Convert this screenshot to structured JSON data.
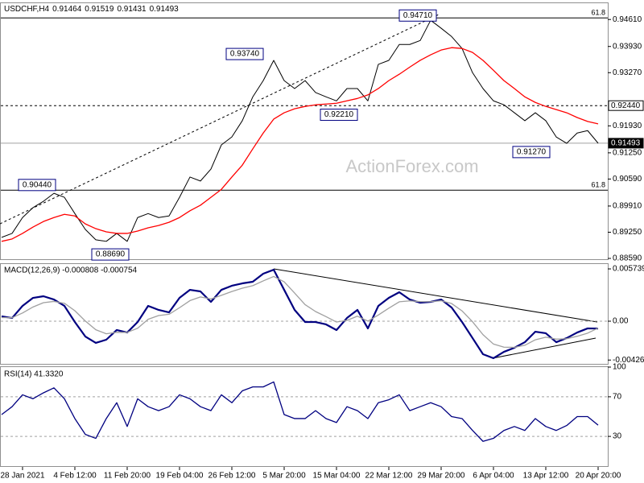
{
  "chart_data": [
    {
      "type": "line",
      "title": "USDCHF,H4",
      "ohlc": [
        "0.91464",
        "0.91519",
        "0.91431",
        "0.91493"
      ],
      "watermark": "ActionForex.com",
      "series": [
        {
          "color": "#000000",
          "values": [
            0.8912,
            0.8922,
            0.8962,
            0.8987,
            0.9003,
            0.9023,
            0.9013,
            0.8972,
            0.8932,
            0.8906,
            0.8902,
            0.8922,
            0.8902,
            0.8962,
            0.8972,
            0.8962,
            0.8966,
            0.9013,
            0.9064,
            0.9054,
            0.9084,
            0.9145,
            0.9165,
            0.9206,
            0.9266,
            0.9307,
            0.9358,
            0.9307,
            0.9287,
            0.9307,
            0.9277,
            0.9266,
            0.9256,
            0.9287,
            0.9287,
            0.9256,
            0.9348,
            0.9358,
            0.9398,
            0.9398,
            0.9408,
            0.9459,
            0.9439,
            0.9418,
            0.9388,
            0.9327,
            0.9287,
            0.9256,
            0.9246,
            0.9226,
            0.9206,
            0.9226,
            0.9206,
            0.9165,
            0.9149,
            0.9175,
            0.9181,
            0.91493
          ]
        },
        {
          "color": "#ff0000",
          "values": [
            0.8902,
            0.8908,
            0.8922,
            0.8938,
            0.8952,
            0.8962,
            0.897,
            0.8966,
            0.8946,
            0.8934,
            0.8926,
            0.8922,
            0.8922,
            0.8928,
            0.8936,
            0.8942,
            0.895,
            0.8962,
            0.8979,
            0.8993,
            0.9013,
            0.9033,
            0.9064,
            0.9094,
            0.9135,
            0.9175,
            0.921,
            0.9226,
            0.9236,
            0.9242,
            0.9246,
            0.9248,
            0.925,
            0.9256,
            0.9262,
            0.9271,
            0.9287,
            0.9307,
            0.9323,
            0.9341,
            0.9358,
            0.9372,
            0.9384,
            0.939,
            0.9388,
            0.9378,
            0.9358,
            0.9333,
            0.9307,
            0.9287,
            0.9266,
            0.9252,
            0.9242,
            0.9234,
            0.9226,
            0.9214,
            0.9204,
            0.9198
          ]
        }
      ],
      "ylim": [
        0.8857,
        0.9504
      ],
      "yticks": [
        {
          "value": 0.9461,
          "label": "0.94610"
        },
        {
          "value": 0.9393,
          "label": "0.93930"
        },
        {
          "value": 0.9327,
          "label": "0.93270"
        },
        {
          "value": 0.9193,
          "label": "0.91930"
        },
        {
          "value": 0.9125,
          "label": "0.91250"
        },
        {
          "value": 0.9059,
          "label": "0.90590"
        },
        {
          "value": 0.8991,
          "label": "0.89910"
        },
        {
          "value": 0.8925,
          "label": "0.89250"
        },
        {
          "value": 0.8859,
          "label": "0.88590"
        }
      ],
      "levels": [
        {
          "value": 0.9465,
          "label": "61.8"
        },
        {
          "value": 0.9031,
          "label": "61.8"
        }
      ],
      "axis_labels": [
        {
          "value": 0.9244,
          "label": "0.92440"
        },
        {
          "value": 0.91493,
          "label": "0.91493"
        }
      ],
      "annotations": [
        {
          "value": 0.9471,
          "label": "0.94710"
        },
        {
          "value": 0.9374,
          "label": "0.93740"
        },
        {
          "value": 0.9221,
          "label": "0.92210"
        },
        {
          "value": 0.9127,
          "label": "0.91270"
        },
        {
          "value": 0.9044,
          "label": "0.90440"
        },
        {
          "value": 0.8869,
          "label": "0.88690"
        }
      ]
    },
    {
      "type": "line",
      "title": "MACD(12,26,9) -0.000808 -0.000754",
      "series": [
        {
          "color": "#000080",
          "values": [
            0.00053,
            0.00035,
            0.00168,
            0.00256,
            0.00274,
            0.00238,
            0.00168,
            -9e-05,
            -0.00168,
            -0.00238,
            -0.00203,
            -0.00097,
            -0.00124,
            -9e-05,
            0.00168,
            0.00124,
            0.00097,
            0.00256,
            0.00344,
            0.00327,
            0.00212,
            0.00344,
            0.00389,
            0.00415,
            0.00433,
            0.00521,
            0.00565,
            0.00344,
            0.00124,
            -9e-05,
            -9e-05,
            -0.00035,
            -0.00097,
            0.00035,
            0.00124,
            -0.00079,
            0.00168,
            0.00256,
            0.00318,
            0.00238,
            0.00203,
            0.00212,
            0.00238,
            0.0015,
            -9e-05,
            -0.00185,
            -0.00362,
            -0.00406,
            -0.00336,
            -0.00291,
            -0.0023,
            -0.00115,
            -0.00132,
            -0.0023,
            -0.00185,
            -0.00124,
            -0.00079,
            -0.000808
          ]
        },
        {
          "color": "#a0a0a0",
          "values": [
            0.0004,
            0.00038,
            0.0009,
            0.00156,
            0.00203,
            0.00217,
            0.00197,
            0.00115,
            2e-05,
            -0.00094,
            -0.00138,
            -0.00122,
            -0.00123,
            -0.00077,
            0.00021,
            0.00062,
            0.00076,
            0.00148,
            0.00226,
            0.00266,
            0.00244,
            0.00284,
            0.00326,
            0.00362,
            0.0039,
            0.00442,
            0.00491,
            0.00432,
            0.00309,
            0.00182,
            0.00106,
            0.0005,
            -9e-05,
            9e-05,
            0.00055,
            1e-05,
            0.00068,
            0.00143,
            0.00213,
            0.00223,
            0.00215,
            0.00214,
            0.00224,
            0.00194,
            0.00113,
            -6e-05,
            -0.00148,
            -0.00251,
            -0.00285,
            -0.00287,
            -0.00264,
            -0.00204,
            -0.00175,
            -0.00197,
            -0.00192,
            -0.00165,
            -0.00131,
            -0.000754
          ]
        }
      ],
      "ylim": [
        -0.00468,
        0.00636
      ],
      "yticks": [
        0.005739,
        {
          "value": 0,
          "label": "0.00"
        },
        -0.004261
      ],
      "levels": [
        0
      ]
    },
    {
      "type": "line",
      "title": "RSI(14) 41.3320",
      "categories": [
        null,
        null,
        "28 Jan 2021",
        null,
        null,
        null,
        null,
        "4 Feb 12:00",
        null,
        null,
        null,
        null,
        "11 Feb 20:00",
        null,
        null,
        null,
        null,
        "19 Feb 04:00",
        null,
        null,
        null,
        null,
        "26 Feb 12:00",
        null,
        null,
        null,
        null,
        "5 Mar 20:00",
        null,
        null,
        null,
        null,
        "15 Mar 04:00",
        null,
        null,
        null,
        null,
        "22 Mar 12:00",
        null,
        null,
        null,
        null,
        "29 Mar 20:00",
        null,
        null,
        null,
        null,
        "6 Apr 04:00",
        null,
        null,
        null,
        null,
        "13 Apr 12:00",
        null,
        null,
        null,
        null,
        "20 Apr 20:00"
      ],
      "series": [
        {
          "color": "#000080",
          "values": [
            52,
            60,
            72,
            68,
            74,
            79,
            68,
            48,
            32,
            28,
            48,
            64,
            40,
            68,
            60,
            56,
            60,
            72,
            68,
            60,
            56,
            72,
            64,
            76,
            80,
            80,
            85,
            52,
            48,
            48,
            56,
            48,
            44,
            60,
            56,
            48,
            64,
            67,
            72,
            56,
            60,
            64,
            60,
            50,
            48,
            36,
            25,
            28,
            36,
            40,
            36,
            48,
            40,
            36,
            41,
            50,
            50,
            41.332
          ]
        }
      ],
      "ylim": [
        0,
        100
      ],
      "yticks": [
        100,
        70,
        30
      ],
      "levels": [
        70,
        30
      ]
    }
  ]
}
